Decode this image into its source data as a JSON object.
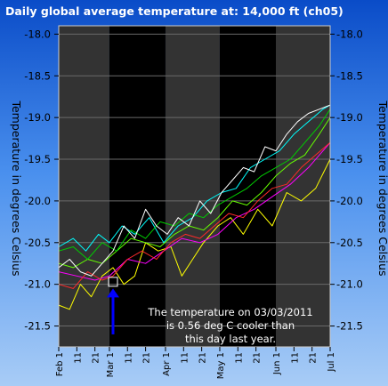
{
  "chart_data": {
    "type": "line",
    "title": "Daily global average temperature at: 14,000 ft (ch05)",
    "ylabel": "Temperature in degrees Celsius",
    "ylabel_right": "Temperature in degrees Celsius",
    "xlim": [
      "Feb 1",
      "Jul 1"
    ],
    "ylim": [
      -21.75,
      -17.9
    ],
    "y_ticks": [
      -21.5,
      -21.0,
      -20.5,
      -20.0,
      -19.5,
      -19.0,
      -18.5,
      -18.0
    ],
    "y_tick_labels": [
      "-21.5",
      "-21.0",
      "-20.5",
      "-20.0",
      "-19.5",
      "-19.0",
      "-18.5",
      "-18.0"
    ],
    "x_ticks": [
      {
        "day": 0,
        "label": "Feb 1"
      },
      {
        "day": 10,
        "label": "11"
      },
      {
        "day": 20,
        "label": "21"
      },
      {
        "day": 28,
        "label": "Mar 1"
      },
      {
        "day": 38,
        "label": "11"
      },
      {
        "day": 48,
        "label": "21"
      },
      {
        "day": 59,
        "label": "Apr 1"
      },
      {
        "day": 69,
        "label": "11"
      },
      {
        "day": 79,
        "label": "21"
      },
      {
        "day": 89,
        "label": "May 1"
      },
      {
        "day": 99,
        "label": "11"
      },
      {
        "day": 109,
        "label": "21"
      },
      {
        "day": 120,
        "label": "Jun 1"
      },
      {
        "day": 130,
        "label": "11"
      },
      {
        "day": 140,
        "label": "21"
      },
      {
        "day": 150,
        "label": "Jul 1"
      }
    ],
    "month_bands": [
      {
        "start": 0,
        "end": 28,
        "color": "#333333"
      },
      {
        "start": 28,
        "end": 59,
        "color": "#000000"
      },
      {
        "start": 59,
        "end": 89,
        "color": "#333333"
      },
      {
        "start": 89,
        "end": 120,
        "color": "#000000"
      },
      {
        "start": 120,
        "end": 150,
        "color": "#333333"
      }
    ],
    "series": [
      {
        "color": "#00ffff",
        "x": [
          0,
          8,
          15,
          22,
          28,
          35,
          42,
          50,
          58,
          66,
          74,
          82,
          90,
          98,
          106,
          114,
          122,
          130,
          138,
          146,
          150
        ],
        "y": [
          -20.55,
          -20.45,
          -20.6,
          -20.4,
          -20.5,
          -20.3,
          -20.4,
          -20.2,
          -20.5,
          -20.3,
          -20.2,
          -20.0,
          -19.9,
          -19.85,
          -19.6,
          -19.5,
          -19.4,
          -19.2,
          -19.05,
          -18.9,
          -18.85
        ]
      },
      {
        "color": "#ffff00",
        "x": [
          0,
          6,
          12,
          18,
          24,
          30,
          36,
          42,
          48,
          55,
          62,
          68,
          74,
          80,
          88,
          95,
          102,
          110,
          118,
          126,
          134,
          142,
          150
        ],
        "y": [
          -21.25,
          -21.3,
          -21.0,
          -21.15,
          -20.9,
          -20.8,
          -21.0,
          -20.9,
          -20.5,
          -20.6,
          -20.55,
          -20.9,
          -20.7,
          -20.5,
          -20.3,
          -20.2,
          -20.4,
          -20.1,
          -20.3,
          -19.9,
          -20.0,
          -19.85,
          -19.5
        ]
      },
      {
        "color": "#ff00ff",
        "x": [
          0,
          10,
          20,
          28,
          38,
          48,
          58,
          68,
          78,
          88,
          98,
          108,
          118,
          128,
          138,
          150
        ],
        "y": [
          -20.85,
          -20.9,
          -20.95,
          -20.9,
          -20.7,
          -20.75,
          -20.6,
          -20.45,
          -20.5,
          -20.4,
          -20.2,
          -20.1,
          -19.95,
          -19.8,
          -19.6,
          -19.3
        ]
      },
      {
        "color": "#66ff00",
        "x": [
          0,
          8,
          16,
          24,
          32,
          40,
          48,
          56,
          64,
          72,
          80,
          88,
          96,
          104,
          112,
          120,
          128,
          136,
          144,
          150
        ],
        "y": [
          -20.75,
          -20.8,
          -20.7,
          -20.75,
          -20.6,
          -20.45,
          -20.5,
          -20.55,
          -20.4,
          -20.3,
          -20.35,
          -20.2,
          -20.0,
          -20.05,
          -19.9,
          -19.7,
          -19.55,
          -19.45,
          -19.2,
          -19.0
        ]
      },
      {
        "color": "#00cc00",
        "x": [
          0,
          8,
          16,
          24,
          32,
          40,
          48,
          56,
          64,
          72,
          80,
          88,
          96,
          104,
          112,
          120,
          128,
          136,
          144,
          150
        ],
        "y": [
          -20.6,
          -20.55,
          -20.7,
          -20.5,
          -20.6,
          -20.35,
          -20.45,
          -20.25,
          -20.3,
          -20.15,
          -20.2,
          -20.05,
          -19.95,
          -19.85,
          -19.7,
          -19.6,
          -19.5,
          -19.3,
          -19.1,
          -18.9
        ]
      },
      {
        "color": "#ff2a2a",
        "x": [
          0,
          8,
          16,
          24,
          30,
          38,
          46,
          54,
          62,
          70,
          78,
          86,
          94,
          102,
          110,
          118,
          126,
          134,
          142,
          150
        ],
        "y": [
          -21.0,
          -21.05,
          -20.85,
          -20.95,
          -20.9,
          -20.7,
          -20.6,
          -20.7,
          -20.5,
          -20.4,
          -20.45,
          -20.3,
          -20.15,
          -20.2,
          -20.0,
          -19.85,
          -19.8,
          -19.6,
          -19.45,
          -19.3
        ]
      },
      {
        "color": "#ffffff",
        "x": [
          0,
          6,
          12,
          18,
          24,
          30,
          36,
          42,
          48,
          54,
          60,
          66,
          72,
          78,
          84,
          90,
          96,
          102,
          108,
          114,
          120,
          126,
          132,
          138,
          144,
          150
        ],
        "y": [
          -20.8,
          -20.7,
          -20.85,
          -20.9,
          -20.75,
          -20.6,
          -20.3,
          -20.45,
          -20.1,
          -20.3,
          -20.4,
          -20.2,
          -20.3,
          -20.0,
          -20.15,
          -19.9,
          -19.75,
          -19.6,
          -19.65,
          -19.35,
          -19.4,
          -19.2,
          -19.05,
          -18.95,
          -18.9,
          -18.85
        ]
      }
    ],
    "marker": {
      "day": 30,
      "value": -20.97
    },
    "arrow": {
      "day": 30,
      "from": -21.6,
      "to": -21.05,
      "color": "#0000ff"
    },
    "annotation_lines": [
      "The temperature on 03/03/2011",
      "is  0.56 deg C cooler than",
      "this day last year."
    ]
  }
}
